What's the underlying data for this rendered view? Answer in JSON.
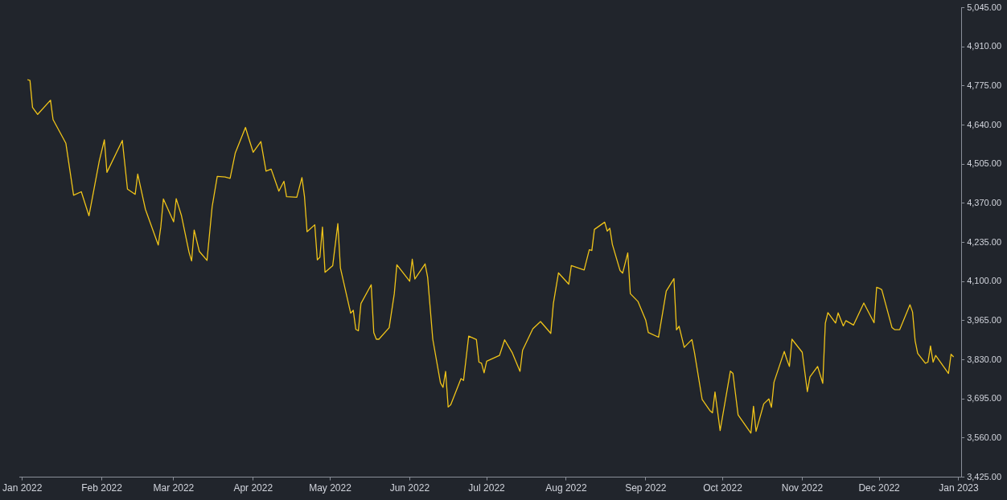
{
  "chart_data": {
    "type": "line",
    "x": [
      "2022-01-03",
      "2022-01-04",
      "2022-01-05",
      "2022-01-07",
      "2022-01-12",
      "2022-01-13",
      "2022-01-18",
      "2022-01-21",
      "2022-01-24",
      "2022-01-27",
      "2022-01-31",
      "2022-02-02",
      "2022-02-03",
      "2022-02-09",
      "2022-02-11",
      "2022-02-14",
      "2022-02-15",
      "2022-02-18",
      "2022-02-23",
      "2022-02-24",
      "2022-02-25",
      "2022-03-01",
      "2022-03-02",
      "2022-03-04",
      "2022-03-07",
      "2022-03-08",
      "2022-03-09",
      "2022-03-11",
      "2022-03-14",
      "2022-03-16",
      "2022-03-18",
      "2022-03-21",
      "2022-03-23",
      "2022-03-25",
      "2022-03-29",
      "2022-03-30",
      "2022-04-01",
      "2022-04-04",
      "2022-04-06",
      "2022-04-08",
      "2022-04-11",
      "2022-04-13",
      "2022-04-14",
      "2022-04-18",
      "2022-04-20",
      "2022-04-21",
      "2022-04-22",
      "2022-04-25",
      "2022-04-26",
      "2022-04-27",
      "2022-04-28",
      "2022-04-29",
      "2022-05-02",
      "2022-05-04",
      "2022-05-05",
      "2022-05-09",
      "2022-05-10",
      "2022-05-11",
      "2022-05-12",
      "2022-05-13",
      "2022-05-17",
      "2022-05-18",
      "2022-05-19",
      "2022-05-20",
      "2022-05-24",
      "2022-05-26",
      "2022-05-27",
      "2022-06-01",
      "2022-06-02",
      "2022-06-03",
      "2022-06-07",
      "2022-06-08",
      "2022-06-10",
      "2022-06-13",
      "2022-06-14",
      "2022-06-15",
      "2022-06-16",
      "2022-06-17",
      "2022-06-21",
      "2022-06-22",
      "2022-06-24",
      "2022-06-27",
      "2022-06-28",
      "2022-06-29",
      "2022-06-30",
      "2022-07-01",
      "2022-07-06",
      "2022-07-08",
      "2022-07-11",
      "2022-07-14",
      "2022-07-15",
      "2022-07-19",
      "2022-07-22",
      "2022-07-26",
      "2022-07-27",
      "2022-07-29",
      "2022-08-02",
      "2022-08-03",
      "2022-08-08",
      "2022-08-10",
      "2022-08-11",
      "2022-08-12",
      "2022-08-16",
      "2022-08-17",
      "2022-08-18",
      "2022-08-19",
      "2022-08-22",
      "2022-08-23",
      "2022-08-25",
      "2022-08-26",
      "2022-08-29",
      "2022-09-01",
      "2022-09-02",
      "2022-09-06",
      "2022-09-09",
      "2022-09-12",
      "2022-09-13",
      "2022-09-14",
      "2022-09-16",
      "2022-09-19",
      "2022-09-20",
      "2022-09-23",
      "2022-09-26",
      "2022-09-27",
      "2022-09-28",
      "2022-09-30",
      "2022-10-04",
      "2022-10-05",
      "2022-10-07",
      "2022-10-12",
      "2022-10-13",
      "2022-10-14",
      "2022-10-17",
      "2022-10-19",
      "2022-10-20",
      "2022-10-21",
      "2022-10-25",
      "2022-10-26",
      "2022-10-27",
      "2022-10-28",
      "2022-11-01",
      "2022-11-03",
      "2022-11-04",
      "2022-11-07",
      "2022-11-09",
      "2022-11-10",
      "2022-11-11",
      "2022-11-14",
      "2022-11-15",
      "2022-11-17",
      "2022-11-18",
      "2022-11-21",
      "2022-11-25",
      "2022-11-29",
      "2022-11-30",
      "2022-12-01",
      "2022-12-02",
      "2022-12-06",
      "2022-12-07",
      "2022-12-09",
      "2022-12-13",
      "2022-12-14",
      "2022-12-15",
      "2022-12-16",
      "2022-12-19",
      "2022-12-20",
      "2022-12-21",
      "2022-12-22",
      "2022-12-23",
      "2022-12-28",
      "2022-12-29",
      "2022-12-30"
    ],
    "series": [
      {
        "color": "#f0c419",
        "values": [
          4797,
          4794,
          4701,
          4677,
          4726,
          4659,
          4577,
          4398,
          4410,
          4327,
          4516,
          4589,
          4477,
          4587,
          4419,
          4401,
          4471,
          4349,
          4226,
          4289,
          4385,
          4306,
          4386,
          4329,
          4201,
          4171,
          4278,
          4204,
          4173,
          4358,
          4463,
          4461,
          4456,
          4543,
          4632,
          4602,
          4546,
          4583,
          4481,
          4488,
          4412,
          4446,
          4393,
          4391,
          4459,
          4393,
          4272,
          4296,
          4175,
          4184,
          4288,
          4132,
          4155,
          4300,
          4147,
          3991,
          4001,
          3935,
          3930,
          4024,
          4089,
          3924,
          3901,
          3901,
          3941,
          4058,
          4158,
          4101,
          4177,
          4109,
          4161,
          4115,
          3901,
          3750,
          3735,
          3790,
          3667,
          3675,
          3765,
          3759,
          3912,
          3900,
          3822,
          3818,
          3785,
          3825,
          3845,
          3899,
          3854,
          3790,
          3863,
          3937,
          3962,
          3921,
          4024,
          4130,
          4091,
          4155,
          4140,
          4210,
          4207,
          4280,
          4305,
          4274,
          4284,
          4228,
          4138,
          4129,
          4199,
          4058,
          4031,
          3967,
          3924,
          3908,
          4067,
          4110,
          3933,
          3946,
          3873,
          3900,
          3855,
          3693,
          3655,
          3647,
          3719,
          3586,
          3791,
          3783,
          3640,
          3577,
          3670,
          3583,
          3678,
          3695,
          3666,
          3753,
          3859,
          3831,
          3807,
          3901,
          3856,
          3720,
          3771,
          3807,
          3749,
          3956,
          3993,
          3957,
          3992,
          3947,
          3965,
          3950,
          4026,
          3958,
          4080,
          4077,
          4072,
          3941,
          3934,
          3934,
          4020,
          3995,
          3896,
          3852,
          3818,
          3822,
          3878,
          3822,
          3845,
          3783,
          3849,
          3840
        ]
      }
    ],
    "xlim": [
      "2021-12-31",
      "2023-01-02"
    ],
    "xticks": [
      {
        "value": "2022-01-01",
        "label": "Jan 2022"
      },
      {
        "value": "2022-02-01",
        "label": "Feb 2022"
      },
      {
        "value": "2022-03-01",
        "label": "Mar 2022"
      },
      {
        "value": "2022-04-01",
        "label": "Apr 2022"
      },
      {
        "value": "2022-05-01",
        "label": "May 2022"
      },
      {
        "value": "2022-06-01",
        "label": "Jun 2022"
      },
      {
        "value": "2022-07-01",
        "label": "Jul 2022"
      },
      {
        "value": "2022-08-01",
        "label": "Aug 2022"
      },
      {
        "value": "2022-09-01",
        "label": "Sep 2022"
      },
      {
        "value": "2022-10-01",
        "label": "Oct 2022"
      },
      {
        "value": "2022-11-01",
        "label": "Nov 2022"
      },
      {
        "value": "2022-12-01",
        "label": "Dec 2022"
      },
      {
        "value": "2023-01-01",
        "label": "Jan 2023"
      }
    ],
    "ylim": [
      3425,
      5045
    ],
    "yticks": [
      {
        "value": 3425,
        "label": "3,425.00"
      },
      {
        "value": 3560,
        "label": "3,560.00"
      },
      {
        "value": 3695,
        "label": "3,695.00"
      },
      {
        "value": 3830,
        "label": "3,830.00"
      },
      {
        "value": 3965,
        "label": "3,965.00"
      },
      {
        "value": 4100,
        "label": "4,100.00"
      },
      {
        "value": 4235,
        "label": "4,235.00"
      },
      {
        "value": 4370,
        "label": "4,370.00"
      },
      {
        "value": 4505,
        "label": "4,505.00"
      },
      {
        "value": 4640,
        "label": "4,640.00"
      },
      {
        "value": 4775,
        "label": "4,775.00"
      },
      {
        "value": 4910,
        "label": "4,910.00"
      },
      {
        "value": 5045,
        "label": "5,045.00"
      }
    ],
    "grid": false,
    "legend": false,
    "marker": "none",
    "line_style": "solid"
  }
}
